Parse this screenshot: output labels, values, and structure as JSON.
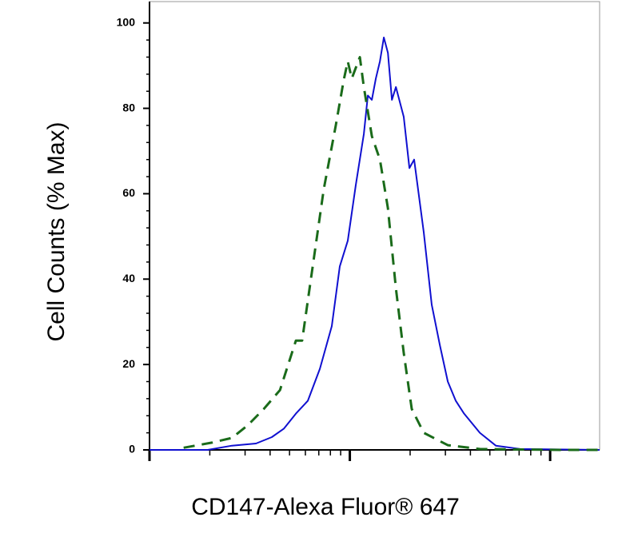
{
  "chart_data": {
    "type": "line",
    "xlabel": "CD147-Alexa Fluor® 647",
    "ylabel": "Cell Counts (% Max)",
    "xscale": "log",
    "xlim": [
      100,
      17660
    ],
    "xticks": [
      100,
      1000,
      10000
    ],
    "ylim": [
      0,
      105
    ],
    "yticks": [
      0,
      20,
      40,
      60,
      80,
      100
    ],
    "series": [
      {
        "color": "#1010d0",
        "linestyle": "solid",
        "x": [
          100,
          195,
          258,
          340,
          408,
          469,
          538,
          617,
          709,
          813,
          891,
          977,
          1071,
          1175,
          1230,
          1288,
          1349,
          1413,
          1479,
          1549,
          1622,
          1698,
          1858,
          1983,
          2094,
          2339,
          2564,
          2812,
          3083,
          3381,
          3707,
          4457,
          5358,
          7063,
          17660
        ],
        "values": [
          0,
          0,
          1,
          1.5,
          3,
          5,
          8.5,
          11.5,
          19,
          29,
          43,
          49,
          62,
          74,
          83,
          82,
          87,
          91,
          96.6,
          93,
          82,
          85,
          78,
          66,
          68,
          51,
          34,
          24.6,
          16,
          11.5,
          8.6,
          4,
          1,
          0.2,
          0
        ]
      },
      {
        "color": "#1a6b1a",
        "linestyle": "dashed",
        "x": [
          148,
          205,
          258,
          310,
          372,
          448,
          538,
          578,
          646,
          741,
          851,
          933,
          977,
          1023,
          1122,
          1175,
          1288,
          1413,
          1549,
          1698,
          1858,
          2038,
          2339,
          3083,
          4457,
          11170,
          17660
        ],
        "values": [
          0.5,
          1.7,
          2.8,
          5.8,
          9.6,
          14,
          25.6,
          25.6,
          41.5,
          61,
          76,
          86.7,
          91,
          87,
          92,
          85,
          73.5,
          68,
          56.6,
          37.8,
          22.7,
          9.6,
          4,
          1.1,
          0.2,
          0,
          0
        ]
      }
    ]
  }
}
